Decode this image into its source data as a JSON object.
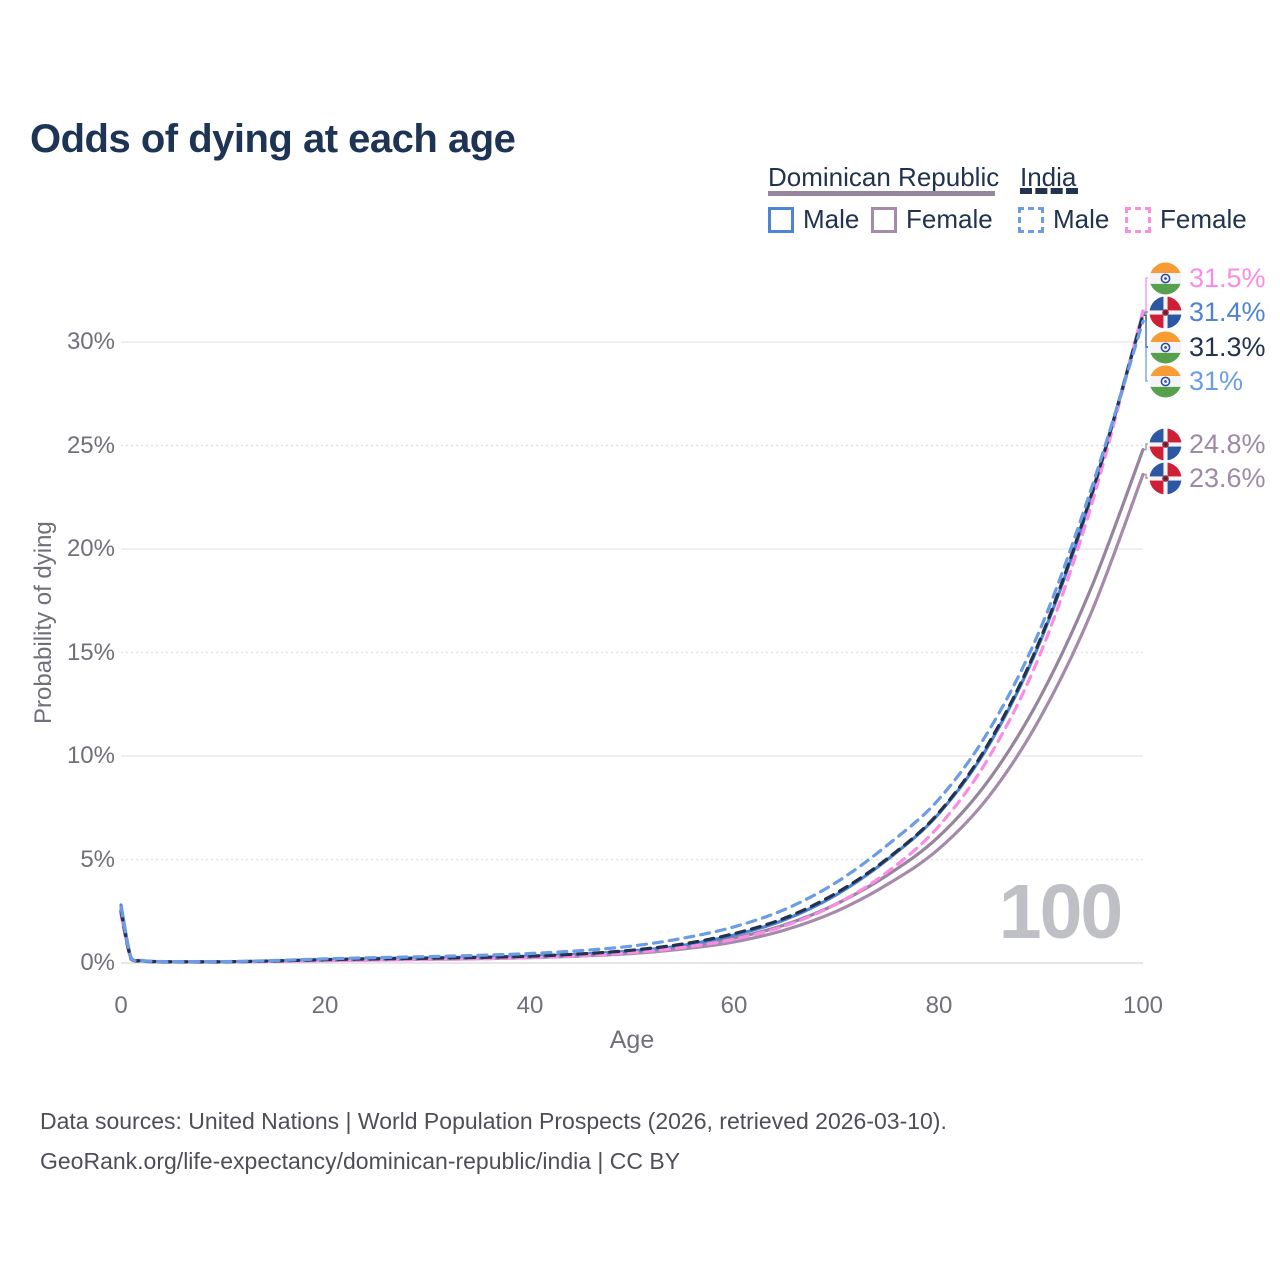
{
  "title": "Odds of dying at each age",
  "legend": {
    "groups": [
      {
        "label": "Dominican Republic",
        "line_style": "solid",
        "color": "#97859e"
      },
      {
        "label": "India",
        "line_style": "dashed",
        "color": "#21334f"
      }
    ],
    "items": [
      {
        "label": "Male",
        "country": "Dominican Republic",
        "line_style": "solid",
        "color": "#4f83d3"
      },
      {
        "label": "Female",
        "country": "Dominican Republic",
        "line_style": "solid",
        "color": "#a58aab"
      },
      {
        "label": "Male",
        "country": "India",
        "line_style": "dashed",
        "color": "#6b9ce6"
      },
      {
        "label": "Female",
        "country": "India",
        "line_style": "dashed",
        "color": "#fb8ce2"
      }
    ]
  },
  "chart_data": {
    "type": "line",
    "title": "Odds of dying at each age",
    "xlabel": "Age",
    "ylabel": "Probability of dying",
    "xlim": [
      0,
      100
    ],
    "ylim_pct": [
      0,
      33
    ],
    "x_tick_labels": [
      "0",
      "20",
      "40",
      "60",
      "80",
      "100"
    ],
    "y_tick_labels": [
      "0%",
      "5%",
      "10%",
      "15%",
      "20%",
      "25%",
      "30%"
    ],
    "grid": "horizontal only, solid at 0/10/20/30%, dotted at 5/15/25%",
    "legend_position": "top-right",
    "watermark": "100",
    "x": [
      0,
      1,
      2,
      3,
      5,
      10,
      15,
      20,
      25,
      30,
      35,
      40,
      45,
      50,
      55,
      60,
      65,
      70,
      75,
      80,
      85,
      90,
      95,
      100
    ],
    "series": [
      {
        "name": "Dominican Republic (both sexes)",
        "color": "#97859e",
        "style": "solid",
        "end_label": "24.8%",
        "values": [
          2.6,
          0.21,
          0.11,
          0.07,
          0.06,
          0.06,
          0.09,
          0.15,
          0.19,
          0.22,
          0.25,
          0.3,
          0.39,
          0.53,
          0.78,
          1.2,
          1.85,
          2.85,
          4.25,
          6.1,
          8.9,
          12.9,
          18.2,
          24.8
        ]
      },
      {
        "name": "Dominican Republic Female",
        "color": "#a58aab",
        "style": "solid",
        "end_label": "23.6%",
        "values": [
          2.4,
          0.19,
          0.1,
          0.06,
          0.05,
          0.05,
          0.08,
          0.12,
          0.15,
          0.18,
          0.21,
          0.26,
          0.34,
          0.46,
          0.68,
          1.02,
          1.6,
          2.5,
          3.8,
          5.5,
          8.1,
          11.9,
          17.0,
          23.6
        ]
      },
      {
        "name": "Dominican Republic Male",
        "color": "#4f83d3",
        "style": "solid",
        "end_label": "31.4%",
        "values": [
          2.8,
          0.22,
          0.12,
          0.08,
          0.06,
          0.06,
          0.1,
          0.17,
          0.22,
          0.25,
          0.28,
          0.33,
          0.43,
          0.58,
          0.85,
          1.35,
          2.1,
          3.3,
          5.0,
          7.2,
          10.6,
          15.6,
          22.6,
          31.4
        ]
      },
      {
        "name": "India Female",
        "color": "#fb8ce2",
        "style": "dashed",
        "end_label": "31.5%",
        "values": [
          2.35,
          0.18,
          0.09,
          0.06,
          0.05,
          0.05,
          0.08,
          0.11,
          0.14,
          0.17,
          0.2,
          0.26,
          0.35,
          0.5,
          0.75,
          1.15,
          1.8,
          2.85,
          4.4,
          6.6,
          10.0,
          15.0,
          22.2,
          31.5
        ]
      },
      {
        "name": "India (both sexes)",
        "color": "#21334f",
        "style": "dashed",
        "end_label": "31.3%",
        "values": [
          2.5,
          0.19,
          0.1,
          0.07,
          0.06,
          0.06,
          0.1,
          0.16,
          0.2,
          0.23,
          0.27,
          0.33,
          0.44,
          0.62,
          0.92,
          1.42,
          2.18,
          3.38,
          5.05,
          7.25,
          10.7,
          15.7,
          22.7,
          31.3
        ]
      },
      {
        "name": "India Male",
        "color": "#6b9ce6",
        "style": "dashed",
        "end_label": "31%",
        "values": [
          2.7,
          0.21,
          0.11,
          0.08,
          0.07,
          0.07,
          0.12,
          0.2,
          0.26,
          0.31,
          0.37,
          0.46,
          0.6,
          0.82,
          1.2,
          1.75,
          2.6,
          3.9,
          5.7,
          7.9,
          11.3,
          16.2,
          23.0,
          31.0
        ]
      }
    ]
  },
  "end_labels": [
    {
      "label": "31.5%",
      "value_pct": 31.5,
      "flag": "india-flag",
      "series": "India Female",
      "color": "#fb8ce2"
    },
    {
      "label": "31.4%",
      "value_pct": 31.4,
      "flag": "dominican-republic-flag",
      "series": "Dominican Republic Male",
      "color": "#4f83d3"
    },
    {
      "label": "31.3%",
      "value_pct": 31.3,
      "flag": "india-flag",
      "series": "India (both sexes)",
      "color": "#21334f"
    },
    {
      "label": "31%",
      "value_pct": 31.0,
      "flag": "india-flag",
      "series": "India Male",
      "color": "#6b9ce6"
    },
    {
      "label": "24.8%",
      "value_pct": 24.8,
      "flag": "dominican-republic-flag",
      "series": "Dominican Republic (both sexes)",
      "color": "#9d8aa6"
    },
    {
      "label": "23.6%",
      "value_pct": 23.6,
      "flag": "dominican-republic-flag",
      "series": "Dominican Republic Female",
      "color": "#9d8aa6"
    }
  ],
  "footer": {
    "line1": "Data sources: United Nations | World Population Prospects (2026, retrieved 2026-03-10).",
    "line2": "GeoRank.org/life-expectancy/dominican-republic/india | CC BY"
  }
}
